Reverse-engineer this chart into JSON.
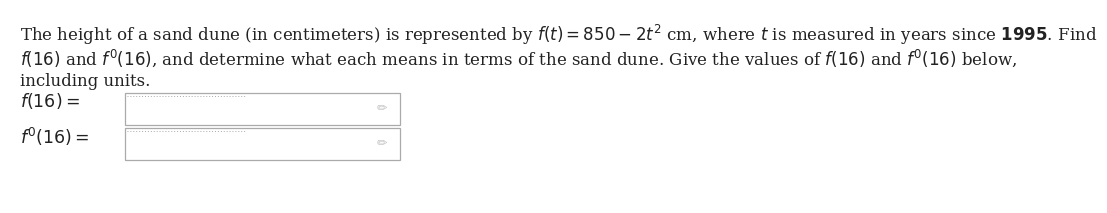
{
  "background_color": "#ffffff",
  "line1": "The height of a sand dune (in centimeters) is represented by $\\boldsymbol{f(t) = 850 - 2t^2}$ cm, where $\\boldsymbol{t}$ is measured in years since \\textbf{1995}. Find",
  "line2": "$\\boldsymbol{f}$\\textbf{(16)} and $\\boldsymbol{f'}$\\textbf{(16)}, and determine what each means in terms of the sand dune. Give the values of $\\boldsymbol{f}$\\textbf{(16)} and $\\boldsymbol{f'}$\\textbf{(16)} below,",
  "line3": "including units.",
  "label1": "$f(16) =$",
  "label2": "$f'(16) =$",
  "font_size": 12.0,
  "box_edge_color": "#aaaaaa",
  "dot_color": "#aaaaaa",
  "pencil_color": "#aaaaaa",
  "text_color": "#222222"
}
